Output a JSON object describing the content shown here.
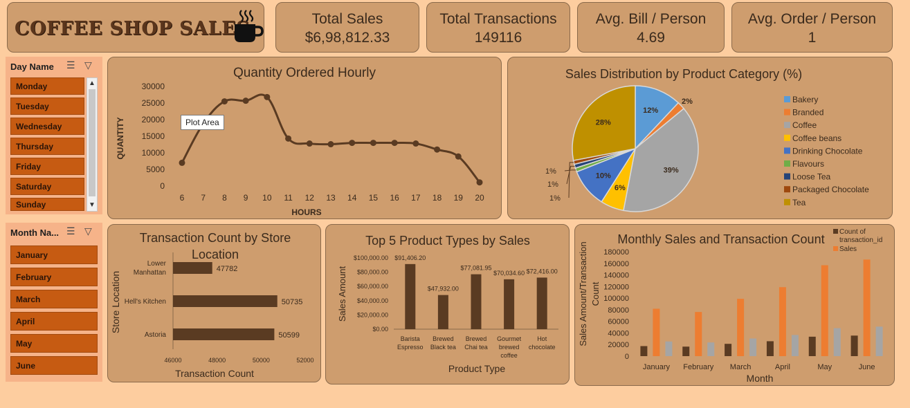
{
  "logo": {
    "text": "COFFEE SHOP SALES",
    "icon": "coffee-cup-icon"
  },
  "kpis": [
    {
      "title": "Total Sales",
      "value": "$6,98,812.33"
    },
    {
      "title": "Total Transactions",
      "value": "149116"
    },
    {
      "title": "Avg. Bill / Person",
      "value": "4.69"
    },
    {
      "title": "Avg. Order / Person",
      "value": "1"
    }
  ],
  "day_slicer": {
    "title": "Day Name",
    "items": [
      "Monday",
      "Tuesday",
      "Wednesday",
      "Thursday",
      "Friday",
      "Saturday",
      "Sunday"
    ]
  },
  "month_slicer": {
    "title": "Month Na...",
    "items": [
      "January",
      "February",
      "March",
      "April",
      "May",
      "June"
    ]
  },
  "tooltip": "Plot Area",
  "colors": {
    "background": "#fdcd9f",
    "card": "#ce9d6e",
    "dark_brown": "#5a3b22",
    "orange": "#ed7d31",
    "grey": "#a5a5a5",
    "slicer_item": "#c65b12"
  },
  "chart_data": [
    {
      "id": "hourly",
      "type": "line",
      "title": "Quantity Ordered Hourly",
      "xlabel": "HOURS",
      "ylabel": "QUANTITY",
      "x": [
        6,
        7,
        8,
        9,
        10,
        11,
        12,
        13,
        14,
        15,
        16,
        17,
        18,
        19,
        20
      ],
      "values": [
        7000,
        18800,
        25500,
        25700,
        26800,
        14300,
        12800,
        12600,
        13000,
        13000,
        13000,
        12800,
        11000,
        8900,
        1100
      ],
      "ylim": [
        0,
        30000
      ],
      "yticks": [
        "0",
        "5000",
        "10000",
        "15000",
        "20000",
        "25000",
        "30000"
      ]
    },
    {
      "id": "category_pie",
      "type": "pie",
      "title": "Sales Distribution by Product Category (%)",
      "categories": [
        "Bakery",
        "Branded",
        "Coffee",
        "Coffee beans",
        "Drinking Chocolate",
        "Flavours",
        "Loose Tea",
        "Packaged Chocolate",
        "Tea"
      ],
      "values": [
        12,
        2,
        39,
        6,
        10,
        1,
        1,
        1,
        28
      ],
      "labels": [
        "12%",
        "2%",
        "39%",
        "6%",
        "10%",
        "1%",
        "1%",
        "1%",
        "28%"
      ],
      "colors": [
        "#5b9bd5",
        "#ed7d31",
        "#a5a5a5",
        "#ffc000",
        "#4472c4",
        "#70ad47",
        "#264478",
        "#9e480e",
        "#bf9000"
      ],
      "legend": "right"
    },
    {
      "id": "store",
      "type": "bar",
      "orientation": "horizontal",
      "title": "Transaction Count by Store Location",
      "xlabel": "Transaction Count",
      "ylabel": "Store Location",
      "categories": [
        "Lower Manhattan",
        "Hell's Kitchen",
        "Astoria"
      ],
      "values": [
        47782,
        50735,
        50599
      ],
      "labels": [
        "47782",
        "50735",
        "50599"
      ],
      "xlim": [
        46000,
        52000
      ],
      "xticks": [
        "46000",
        "48000",
        "50000",
        "52000"
      ]
    },
    {
      "id": "top5",
      "type": "bar",
      "title": "Top 5 Product Types by Sales",
      "xlabel": "Product Type",
      "ylabel": "Sales Amount",
      "categories": [
        [
          "Barista",
          "Espresso"
        ],
        [
          "Brewed",
          "Black tea"
        ],
        [
          "Brewed",
          "Chai tea"
        ],
        [
          "Gourmet",
          "brewed",
          "coffee"
        ],
        [
          "Hot",
          "chocolate"
        ]
      ],
      "values": [
        91406.2,
        47932.0,
        77081.95,
        70034.6,
        72416.0
      ],
      "labels": [
        "$91,406.20",
        "$47,932.00",
        "$77,081.95",
        "$70,034.60",
        "$72,416.00"
      ],
      "ylim": [
        0,
        100000
      ],
      "yticks": [
        "$0.00",
        "$20,000.00",
        "$40,000.00",
        "$60,000.00",
        "$80,000.00",
        "$100,000.00"
      ]
    },
    {
      "id": "monthly",
      "type": "bar",
      "title": "Monthly Sales and Transaction Count",
      "xlabel": "Month",
      "ylabel": "Sales Amount/Transaction Count",
      "categories": [
        "January",
        "February",
        "March",
        "April",
        "May",
        "June"
      ],
      "series": [
        {
          "name": "Count of transaction_id",
          "values": [
            17300,
            16400,
            21200,
            25700,
            33500,
            35400
          ],
          "color": "#5a3b22"
        },
        {
          "name": "Sales",
          "values": [
            81700,
            76100,
            98800,
            118900,
            156700,
            166500
          ],
          "color": "#ed7d31"
        },
        {
          "name": "",
          "values": [
            25300,
            23600,
            30400,
            36500,
            48200,
            50900
          ],
          "color": "#a5a5a5"
        }
      ],
      "ylim": [
        0,
        180000
      ],
      "yticks": [
        "0",
        "20000",
        "40000",
        "60000",
        "80000",
        "100000",
        "120000",
        "140000",
        "160000",
        "180000"
      ],
      "legend": "top-right"
    }
  ]
}
